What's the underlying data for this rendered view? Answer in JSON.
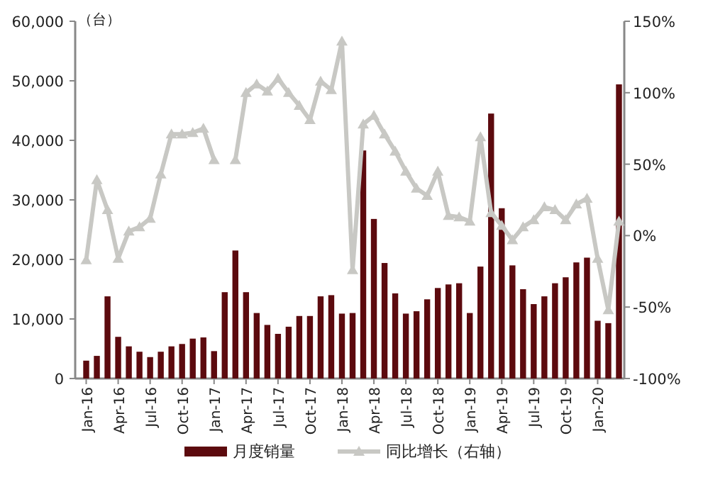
{
  "chart_data": {
    "type": "bar",
    "categories": [
      "Jan-16",
      null,
      null,
      "Apr-16",
      null,
      null,
      "Jul-16",
      null,
      null,
      "Oct-16",
      null,
      null,
      "Jan-17",
      null,
      null,
      "Apr-17",
      null,
      null,
      "Jul-17",
      null,
      null,
      "Oct-17",
      null,
      null,
      "Jan-18",
      null,
      null,
      "Apr-18",
      null,
      null,
      "Jul-18",
      null,
      null,
      "Oct-18",
      null,
      null,
      "Jan-19",
      null,
      null,
      "Apr-19",
      null,
      null,
      "Jul-19",
      null,
      null,
      "Oct-19",
      null,
      null,
      "Jan-20",
      null,
      null
    ],
    "annotations": [
      "（台）"
    ],
    "series": [
      {
        "name": "月度销量",
        "color": "#5c0a0e",
        "values": [
          3000,
          3800,
          13800,
          7000,
          5400,
          4500,
          3600,
          4500,
          5400,
          5800,
          6700,
          6900,
          4600,
          14500,
          21500,
          14500,
          11000,
          9000,
          7500,
          8700,
          10500,
          10500,
          13800,
          14000,
          10900,
          11000,
          38300,
          26800,
          19400,
          14300,
          10900,
          11300,
          13300,
          15200,
          15800,
          16000,
          11000,
          18800,
          44500,
          28600,
          19000,
          15000,
          12500,
          13800,
          16000,
          17000,
          19500,
          20300,
          9700,
          9300,
          49400
        ]
      },
      {
        "name": "同比增长（右轴）",
        "type": "line",
        "axis": "y2",
        "color": "#c8c8c4",
        "marker": "triangle",
        "values": [
          -17,
          39,
          18,
          -16,
          3,
          6,
          12,
          43,
          71,
          71,
          72,
          75,
          53,
          null,
          53,
          100,
          106,
          101,
          110,
          100,
          91,
          81,
          108,
          102,
          136,
          -24,
          78,
          84,
          71,
          59,
          45,
          33,
          28,
          45,
          14,
          13,
          10,
          69,
          16,
          7,
          -3,
          6,
          11,
          20,
          18,
          11,
          22,
          26,
          -16,
          -52,
          10
        ]
      }
    ],
    "ylim": [
      0,
      60000
    ],
    "yticks": [
      {
        "value": 0,
        "label": "0"
      },
      {
        "value": 10000,
        "label": "10,000"
      },
      {
        "value": 20000,
        "label": "20,000"
      },
      {
        "value": 30000,
        "label": "30,000"
      },
      {
        "value": 40000,
        "label": "40,000"
      },
      {
        "value": 50000,
        "label": "50,000"
      },
      {
        "value": 60000,
        "label": "60,000"
      }
    ],
    "y2lim": [
      -100,
      150
    ],
    "y2ticks": [
      {
        "value": -100,
        "label": "-100%"
      },
      {
        "value": -50,
        "label": "-50%"
      },
      {
        "value": 0,
        "label": "0%"
      },
      {
        "value": 50,
        "label": "50%"
      },
      {
        "value": 100,
        "label": "100%"
      },
      {
        "value": 150,
        "label": "150%"
      }
    ],
    "legend": "bottom",
    "grid": false
  }
}
